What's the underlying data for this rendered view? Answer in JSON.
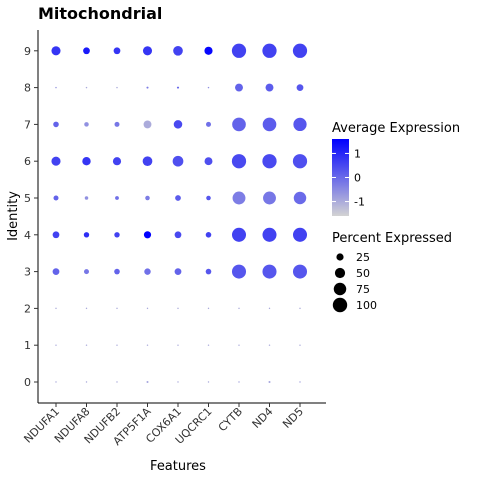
{
  "chart_data": {
    "type": "dotplot",
    "title": "Mitochondrial",
    "xlabel": "Features",
    "ylabel": "Identity",
    "features": [
      "NDUFA1",
      "NDUFA8",
      "NDUFB2",
      "ATP5F1A",
      "COX6A1",
      "UQCRC1",
      "CYTB",
      "ND4",
      "ND5"
    ],
    "identities": [
      "0",
      "1",
      "2",
      "3",
      "4",
      "5",
      "6",
      "7",
      "8",
      "9"
    ],
    "color_scale": {
      "low": "#d3d3d3",
      "high": "#0000ff",
      "min": -1.6,
      "max": 1.6
    },
    "size_scale": {
      "min": 0,
      "max": 100
    },
    "legend_color": {
      "title": "Average Expression",
      "breaks": [
        1,
        0,
        -1
      ],
      "labels": [
        "1",
        "0",
        "-1"
      ]
    },
    "legend_size": {
      "title": "Percent Expressed",
      "breaks": [
        25,
        50,
        75,
        100
      ],
      "labels": [
        "25",
        "50",
        "75",
        "100"
      ]
    },
    "series": [
      {
        "identity": "0",
        "pct": [
          1,
          1,
          1,
          2,
          1,
          1,
          1,
          2,
          1
        ],
        "avg": [
          -1.0,
          -1.0,
          -1.0,
          -0.9,
          -1.0,
          -1.0,
          -0.9,
          -0.9,
          -0.9
        ]
      },
      {
        "identity": "1",
        "pct": [
          1,
          1,
          1,
          1,
          1,
          1,
          1,
          1,
          1
        ],
        "avg": [
          -1.0,
          -1.0,
          -1.0,
          -1.0,
          -1.0,
          -1.0,
          -1.0,
          -1.0,
          -1.0
        ]
      },
      {
        "identity": "2",
        "pct": [
          1,
          1,
          1,
          1,
          1,
          1,
          1,
          1,
          1
        ],
        "avg": [
          -1.0,
          -1.0,
          -1.0,
          -1.0,
          -1.0,
          -1.0,
          -1.0,
          -1.0,
          -1.0
        ]
      },
      {
        "identity": "3",
        "pct": [
          22,
          12,
          15,
          20,
          22,
          15,
          95,
          95,
          95
        ],
        "avg": [
          0.1,
          -0.2,
          0.1,
          -0.1,
          0.1,
          0.3,
          0.3,
          0.3,
          0.3
        ]
      },
      {
        "identity": "4",
        "pct": [
          22,
          14,
          14,
          25,
          22,
          15,
          95,
          95,
          95
        ],
        "avg": [
          0.6,
          0.9,
          0.6,
          1.7,
          0.5,
          0.6,
          0.6,
          0.6,
          0.6
        ]
      },
      {
        "identity": "5",
        "pct": [
          12,
          6,
          7,
          10,
          16,
          10,
          80,
          80,
          75
        ],
        "avg": [
          0.1,
          -0.6,
          -0.1,
          -0.3,
          0.2,
          0.3,
          -0.3,
          -0.2,
          0.0
        ]
      },
      {
        "identity": "6",
        "pct": [
          40,
          34,
          32,
          45,
          55,
          30,
          98,
          98,
          98
        ],
        "avg": [
          0.6,
          0.8,
          0.6,
          0.6,
          0.4,
          0.4,
          0.5,
          0.5,
          0.4
        ]
      },
      {
        "identity": "7",
        "pct": [
          15,
          10,
          12,
          30,
          35,
          12,
          90,
          90,
          85
        ],
        "avg": [
          0.1,
          -0.6,
          -0.2,
          -1.0,
          0.5,
          -0.1,
          0.1,
          0.2,
          0.3
        ]
      },
      {
        "identity": "8",
        "pct": [
          1,
          1,
          1,
          2,
          2,
          1,
          30,
          30,
          22
        ],
        "avg": [
          -0.7,
          -1.0,
          -1.0,
          -0.3,
          0.1,
          -0.6,
          0.1,
          0.2,
          0.3
        ]
      },
      {
        "identity": "9",
        "pct": [
          40,
          22,
          22,
          40,
          45,
          32,
          98,
          98,
          98
        ],
        "avg": [
          0.8,
          1.2,
          0.8,
          0.8,
          0.6,
          1.5,
          0.6,
          0.6,
          0.6
        ]
      }
    ]
  }
}
